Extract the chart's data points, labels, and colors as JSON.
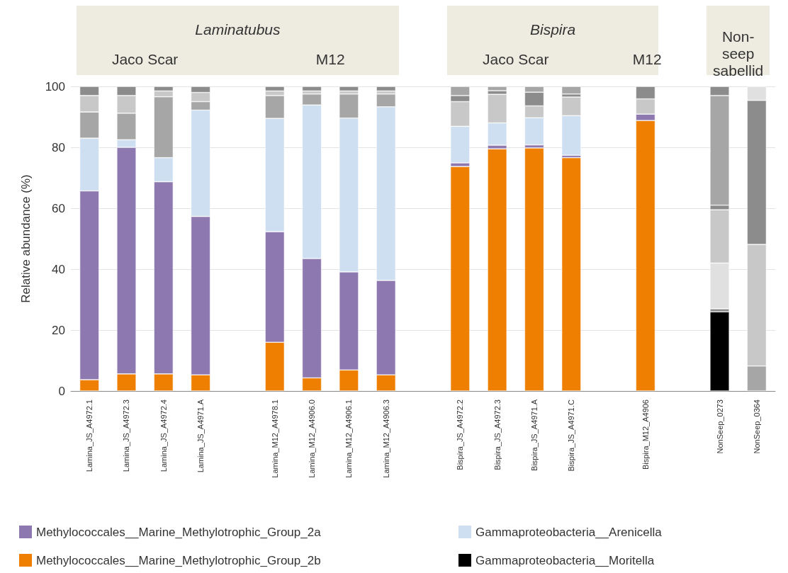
{
  "chart_data": {
    "type": "bar",
    "stacked": true,
    "ylabel": "Relative abundance (%)",
    "categories": [
      "Lamina_JS_A4972.1",
      "Lamina_JS_A4972.3",
      "Lamina_JS_A4972.4",
      "Lamina_JS_A4971.A",
      null,
      "Lamina_M12_A4978.1",
      "Lamina_M12_A4906.0",
      "Lamina_M12_A4906.1",
      "Lamina_M12_A4906.3",
      null,
      "Bispira_JS_A4972.2",
      "Bispira_JS_A4972.3",
      "Bispira_JS_A4971.A",
      "Bispira_JS_A4971.C",
      null,
      "Bispira_M12_A4906",
      null,
      "NonSeep_0273",
      "NonSeep_0364"
    ],
    "series": [
      {
        "name": "Methylococcales__Marine_Methylotrophic_Group_2b",
        "color": "#ee7f00",
        "values": [
          3.7,
          5.6,
          5.6,
          5.3,
          null,
          16,
          4.3,
          6.9,
          5.3,
          null,
          73.7,
          79.5,
          79.8,
          76.6,
          null,
          88.8,
          null,
          null,
          null
        ]
      },
      {
        "name": "Methylococcales__Marine_Methylotrophic_Group_2a",
        "color": "#8e78b0",
        "values": [
          62,
          74.4,
          63.1,
          52,
          null,
          36.3,
          39.2,
          32.2,
          31,
          null,
          1.2,
          1.2,
          1,
          0.8,
          null,
          2.1,
          null,
          null,
          null
        ]
      },
      {
        "name": "Gammaproteobacteria__Arenicella",
        "color": "#cddff0",
        "values": [
          17.3,
          2.5,
          7.9,
          34.9,
          null,
          37.2,
          50.4,
          50.5,
          57,
          null,
          12,
          7.3,
          8.9,
          13,
          null,
          null,
          null,
          null,
          null
        ]
      },
      {
        "name": "Gammaproteobacteria__Moritella",
        "color": "#000000",
        "values": [
          null,
          null,
          null,
          null,
          null,
          null,
          null,
          null,
          null,
          null,
          null,
          null,
          null,
          null,
          null,
          null,
          null,
          26,
          null
        ]
      },
      {
        "colors": [
          "#a6a6a6",
          "#a6a6a6",
          "#a6a6a6",
          "#a6a6a6",
          null,
          "#a6a6a6",
          "#a6a6a6",
          "#a6a6a6",
          "#a6a6a6",
          null,
          "#c8c8c8",
          "#c8c8c8",
          "#c8c8c8",
          "#c8c8c8",
          null,
          "#c8c8c8",
          null,
          "#8c8c8c",
          "#a6a6a6"
        ],
        "values": [
          8.6,
          8.7,
          20,
          2.8,
          null,
          7.5,
          3.6,
          7.9,
          4.2,
          null,
          8.1,
          9.4,
          3.9,
          6.1,
          null,
          5,
          null,
          1,
          8.2
        ]
      },
      {
        "colors": [
          "#c8c8c8",
          "#c8c8c8",
          "#c8c8c8",
          "#c8c8c8",
          null,
          "#c8c8c8",
          "#c8c8c8",
          "#c8c8c8",
          "#c8c8c8",
          null,
          "#8c8c8c",
          "#8c8c8c",
          "#8c8c8c",
          "#8c8c8c",
          null,
          "#8c8c8c",
          null,
          "#e0e0e0",
          "#c8c8c8"
        ],
        "values": [
          5.4,
          5.8,
          1.9,
          3,
          null,
          1.5,
          1,
          1,
          1,
          null,
          2,
          1.2,
          4.5,
          1,
          null,
          4.1,
          null,
          15,
          39.9
        ]
      },
      {
        "colors": [
          "#8c8c8c",
          "#8c8c8c",
          "#8c8c8c",
          "#8c8c8c",
          null,
          "#8c8c8c",
          "#8c8c8c",
          "#8c8c8c",
          "#8c8c8c",
          null,
          "#a6a6a6",
          "#a6a6a6",
          "#a6a6a6",
          "#a6a6a6",
          null,
          null,
          null,
          "#c8c8c8",
          "#8c8c8c"
        ],
        "values": [
          3,
          3,
          1.5,
          2,
          null,
          1.5,
          1.5,
          1.5,
          1.5,
          null,
          3,
          1.4,
          1.9,
          2.5,
          null,
          null,
          null,
          17.5,
          47.3
        ]
      },
      {
        "colors": [
          null,
          null,
          null,
          null,
          null,
          null,
          null,
          null,
          null,
          null,
          null,
          null,
          null,
          null,
          null,
          null,
          null,
          "#8c8c8c",
          "#e0e0e0"
        ],
        "values": [
          null,
          null,
          null,
          null,
          null,
          null,
          null,
          null,
          null,
          null,
          null,
          null,
          null,
          null,
          null,
          null,
          null,
          1.5,
          4.6
        ]
      },
      {
        "colors": [
          null,
          null,
          null,
          null,
          null,
          null,
          null,
          null,
          null,
          null,
          null,
          null,
          null,
          null,
          null,
          null,
          null,
          "#a6a6a6",
          null
        ],
        "values": [
          null,
          null,
          null,
          null,
          null,
          null,
          null,
          null,
          null,
          null,
          null,
          null,
          null,
          null,
          null,
          null,
          null,
          36,
          null
        ]
      },
      {
        "colors": [
          null,
          null,
          null,
          null,
          null,
          null,
          null,
          null,
          null,
          null,
          null,
          null,
          null,
          null,
          null,
          null,
          null,
          "#8c8c8c",
          null
        ],
        "values": [
          null,
          null,
          null,
          null,
          null,
          null,
          null,
          null,
          null,
          null,
          null,
          null,
          null,
          null,
          null,
          null,
          null,
          3,
          null
        ]
      }
    ],
    "ylim": [
      0,
      100
    ],
    "yticks": [
      0,
      20,
      40,
      60,
      80,
      100
    ],
    "grid": "y",
    "legend": "bottom",
    "annotations": [
      "Laminatubus",
      "Jaco Scar",
      "M12",
      "Bispira",
      "Jaco Scar",
      "M12",
      "Non-seep sabellid"
    ]
  }
}
